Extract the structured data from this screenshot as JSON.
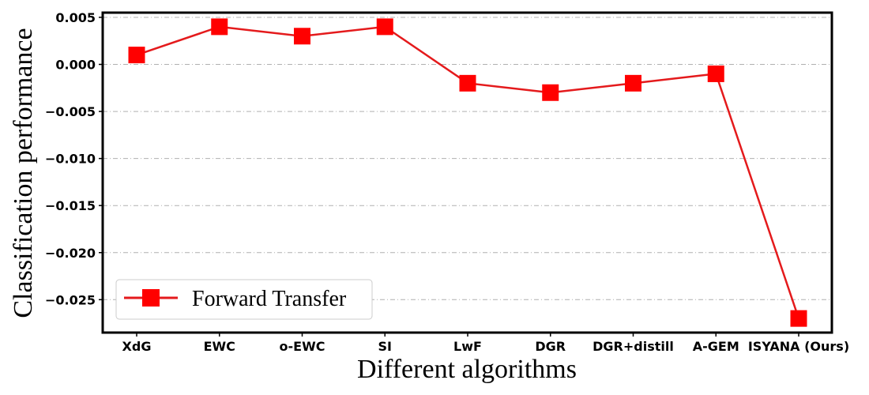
{
  "chart_data": {
    "type": "line",
    "title": "",
    "xlabel": "Different algorithms",
    "ylabel": "Classification performance",
    "categories": [
      "XdG",
      "EWC",
      "o-EWC",
      "SI",
      "LwF",
      "DGR",
      "DGR+distill",
      "A-GEM",
      "ISYANA (Ours)"
    ],
    "series": [
      {
        "name": "Forward Transfer",
        "values": [
          0.001,
          0.004,
          0.003,
          0.004,
          -0.002,
          -0.003,
          -0.002,
          -0.001,
          -0.027
        ],
        "color": "#ff0000",
        "line_color": "#e41a1c",
        "marker": "square"
      }
    ],
    "yticks": [
      0.005,
      0.0,
      -0.005,
      -0.01,
      -0.015,
      -0.02,
      -0.025
    ],
    "ytick_labels": [
      "0.005",
      "0.000",
      "−0.005",
      "−0.010",
      "−0.015",
      "−0.020",
      "−0.025"
    ],
    "ylim": [
      -0.0285,
      0.0055
    ],
    "grid": "horizontal dash-dot",
    "legend_placement": "lower-left"
  }
}
